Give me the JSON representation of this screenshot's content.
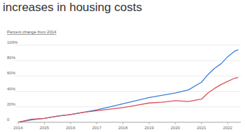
{
  "chart_data": {
    "type": "line",
    "title": "increases in housing costs",
    "subtitle": "Percent change from 2014",
    "x": [
      2014,
      2014.5,
      2015,
      2015.5,
      2016,
      2016.5,
      2017,
      2017.5,
      2018,
      2018.5,
      2019,
      2019.5,
      2020,
      2020.5,
      2021,
      2021.25,
      2021.5,
      2021.75,
      2022,
      2022.25,
      2022.4
    ],
    "series": [
      {
        "color": "#3a7fd5",
        "values": [
          0,
          3,
          5,
          8,
          10,
          13,
          16,
          20,
          24,
          28,
          32,
          35,
          38,
          42,
          52,
          62,
          70,
          76,
          85,
          92,
          94
        ]
      },
      {
        "color": "#d9505a",
        "values": [
          0,
          4,
          5,
          8,
          10,
          13,
          15,
          17,
          19,
          22,
          25,
          26,
          28,
          27,
          30,
          38,
          44,
          49,
          53,
          57,
          58
        ]
      }
    ],
    "xlim": [
      2014,
      2022.5
    ],
    "xticks": [
      2014,
      2015,
      2016,
      2017,
      2018,
      2019,
      2020,
      2021,
      2022
    ],
    "ylim": [
      0,
      100
    ],
    "yticks": [
      {
        "value": 0,
        "label": "0"
      },
      {
        "value": 20,
        "label": "20%"
      },
      {
        "value": 40,
        "label": "40%"
      },
      {
        "value": 60,
        "label": "60%"
      },
      {
        "value": 80,
        "label": "80%"
      },
      {
        "value": 100,
        "label": "100%"
      }
    ],
    "grid": true
  }
}
